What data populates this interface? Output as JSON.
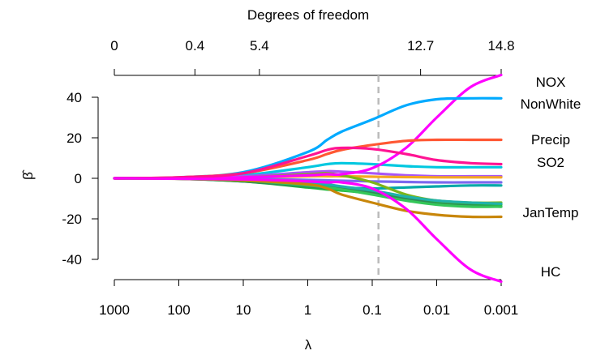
{
  "chart_data": {
    "type": "line",
    "xlabel": "λ",
    "top_axis_label": "Degrees of freedom",
    "ylabel": "β̂",
    "x_scale": "log10, reversed",
    "xlim": [
      1000,
      0.001
    ],
    "ylim": [
      -50,
      50
    ],
    "x_ticks": [
      "1000",
      "100",
      "10",
      "1",
      "0.1",
      "0.01",
      "0.001"
    ],
    "top_ticks": [
      "0",
      "0.4",
      "5.4",
      "12.7",
      "14.8"
    ],
    "y_ticks": [
      "-40",
      "-20",
      "0",
      "20",
      "40"
    ],
    "vline_lambda": 0.08,
    "vline_style": "dashed grey",
    "grid": false,
    "x": [
      1000,
      100,
      10,
      1,
      0.5,
      0.3,
      0.1,
      0.03,
      0.01,
      0.003,
      0.001
    ],
    "series": [
      {
        "name": "NOX",
        "color": "#ff00ff",
        "values": [
          0,
          0.2,
          0.5,
          1.5,
          2,
          2,
          5,
          15,
          30,
          45,
          51
        ]
      },
      {
        "name": "NonWhite",
        "color": "#00aaff",
        "values": [
          0,
          0.5,
          3,
          13,
          19,
          23,
          29,
          36,
          39,
          39.5,
          39.5
        ]
      },
      {
        "name": "Precip",
        "color": "#ff5733",
        "values": [
          0,
          0.5,
          2.5,
          9,
          12,
          14,
          16.5,
          18.5,
          19,
          19,
          19
        ]
      },
      {
        "name": "SO2",
        "color": "#ff1493",
        "values": [
          0,
          0.5,
          2.5,
          11,
          14,
          15,
          14.5,
          12,
          9,
          7.5,
          7
        ]
      },
      {
        "name": "JanTemp",
        "color": "#c8860a",
        "values": [
          0,
          -0.2,
          -1,
          -3,
          -5,
          -8,
          -12,
          -16,
          -18,
          -19,
          -19
        ]
      },
      {
        "name": "HC",
        "color": "#ff00ff",
        "values": [
          0,
          -0.2,
          -0.5,
          -1.5,
          -2,
          -2,
          -5,
          -15,
          -30,
          -45,
          -51
        ]
      },
      {
        "color": "#00c8e0",
        "values": [
          0,
          0.3,
          1.5,
          5.5,
          7,
          7.5,
          7,
          6,
          5.5,
          5.5,
          5.5
        ]
      },
      {
        "color": "#a855f7",
        "values": [
          0,
          0.2,
          1,
          3,
          3.5,
          3.3,
          2.5,
          1.5,
          1,
          1,
          1
        ]
      },
      {
        "color": "#f5a623",
        "values": [
          0,
          0.1,
          0.4,
          1,
          1,
          1,
          0.8,
          0.6,
          0.5,
          0.5,
          0.5
        ]
      },
      {
        "color": "#7b68ee",
        "values": [
          0,
          0,
          -0.2,
          -0.8,
          -1,
          -1.2,
          -1.5,
          -1.8,
          -2,
          -2,
          -2
        ]
      },
      {
        "color": "#00a8a8",
        "values": [
          0,
          -0.1,
          -0.8,
          -3,
          -4,
          -4.5,
          -5,
          -4.5,
          -4,
          -3.5,
          -3.5
        ]
      },
      {
        "color": "#1eb83a",
        "values": [
          0,
          -0.2,
          -1.5,
          -4.5,
          -5.5,
          -6,
          -7.5,
          -10,
          -12,
          -13,
          -13
        ]
      },
      {
        "color": "#2e8b57",
        "values": [
          0,
          -0.2,
          -1.5,
          -4,
          -4.5,
          -5,
          -7,
          -10,
          -12.5,
          -13.5,
          -14
        ]
      },
      {
        "color": "#7cb518",
        "values": [
          0,
          0,
          0.5,
          2,
          2.5,
          1.5,
          -2,
          -8,
          -11,
          -12,
          -12
        ]
      },
      {
        "color": "#34c759",
        "values": [
          0,
          -0.1,
          -1,
          -3.5,
          -4.5,
          -5.5,
          -8,
          -11,
          -13,
          -14,
          -14
        ]
      },
      {
        "color": "#20b2aa",
        "values": [
          0,
          -0.1,
          -0.5,
          -2,
          -3,
          -4,
          -6,
          -9,
          -11,
          -12,
          -12.5
        ]
      }
    ]
  }
}
